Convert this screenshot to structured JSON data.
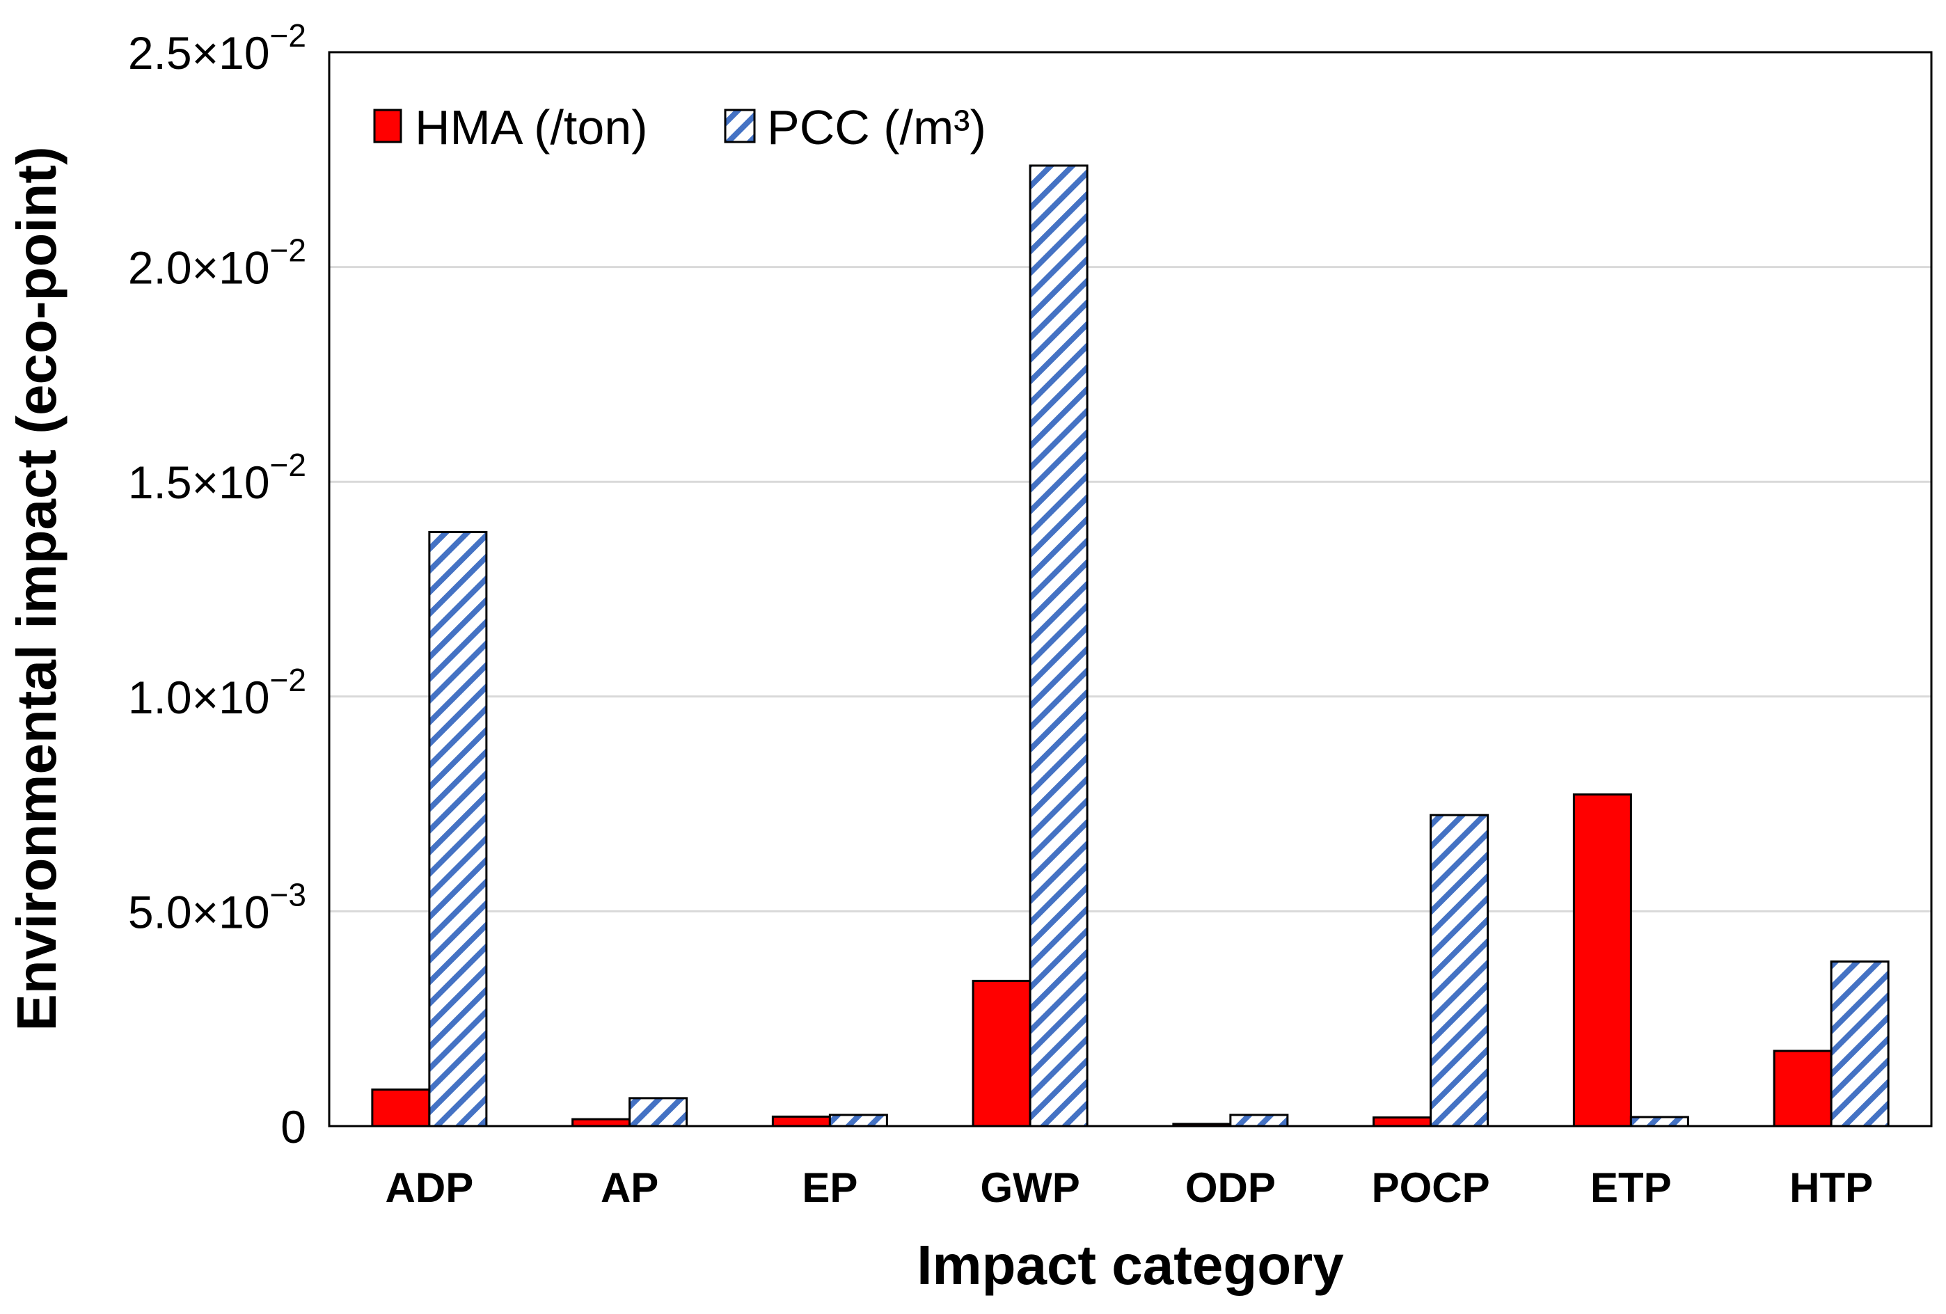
{
  "chart_data": {
    "type": "bar",
    "title": "",
    "xlabel": "Impact category",
    "ylabel": "Environmental impact (eco-point)",
    "ylim": [
      0,
      0.025
    ],
    "yticks": [
      0,
      0.005,
      0.01,
      0.015,
      0.02,
      0.025
    ],
    "ytick_labels": [
      {
        "mantissa": "0",
        "exponent": ""
      },
      {
        "mantissa": "5.0×10",
        "exponent": "−3"
      },
      {
        "mantissa": "1.0×10",
        "exponent": "−2"
      },
      {
        "mantissa": "1.5×10",
        "exponent": "−2"
      },
      {
        "mantissa": "2.0×10",
        "exponent": "−2"
      },
      {
        "mantissa": "2.5×10",
        "exponent": "−2"
      }
    ],
    "grid": true,
    "legend_position": "top-left",
    "categories": [
      "ADP",
      "AP",
      "EP",
      "GWP",
      "ODP",
      "POCP",
      "ETP",
      "HTP"
    ],
    "series": [
      {
        "name": "HMA (/ton)",
        "color": "#ff0000",
        "pattern": "solid",
        "values": [
          0.00085,
          0.00016,
          0.00022,
          0.00338,
          5e-05,
          0.0002,
          0.00772,
          0.00175
        ]
      },
      {
        "name": "PCC (/m³)",
        "color": "#4472c4",
        "pattern": "hatched",
        "values": [
          0.01383,
          0.00065,
          0.00026,
          0.02236,
          0.00026,
          0.00724,
          0.00021,
          0.00383
        ]
      }
    ]
  }
}
